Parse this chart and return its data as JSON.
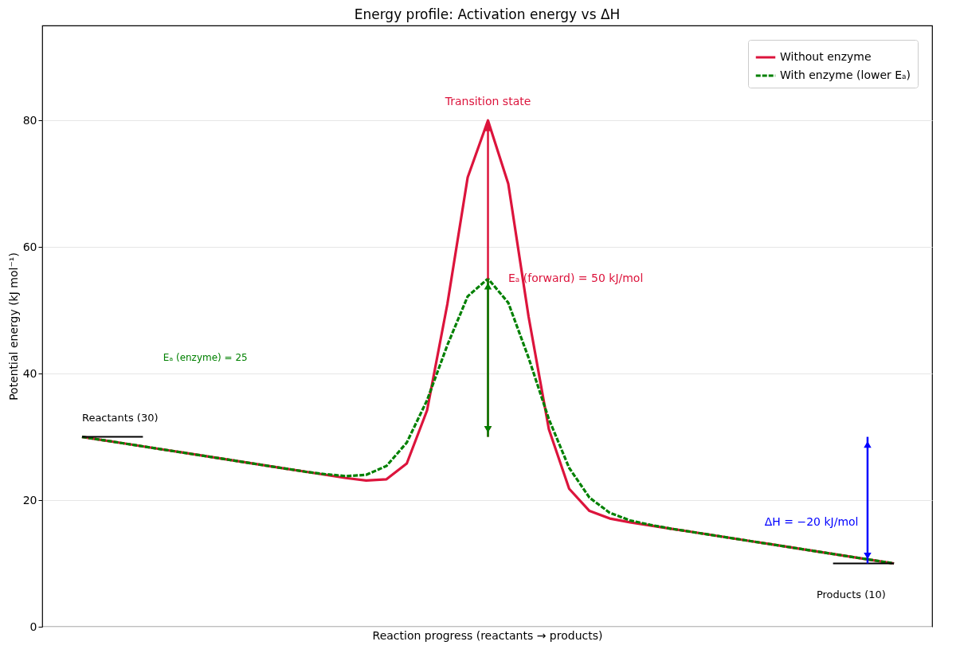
{
  "chart_data": {
    "type": "line",
    "title": "Energy profile: Activation energy vs ΔH",
    "xlabel": "Reaction progress  (reactants → products)",
    "ylabel": "Potential energy (kJ mol⁻¹)",
    "categories": [
      null,
      null,
      null,
      null,
      null,
      null,
      null,
      null,
      null,
      null,
      null,
      null,
      null,
      null,
      null,
      null,
      null,
      null,
      null,
      null,
      null,
      null,
      null,
      null,
      null,
      null,
      null,
      null,
      null,
      null,
      null,
      null,
      null,
      null,
      null,
      null,
      null,
      null,
      null,
      null,
      null
    ],
    "series": [
      {
        "name": "Without enzyme",
        "color": "#dc143c",
        "line_style": "solid",
        "values": [
          30,
          29.5,
          29,
          28.5,
          28,
          27.5,
          27,
          26.5,
          26,
          25.5,
          25,
          24.5,
          24,
          23.5,
          23.1,
          23.3,
          25.8,
          34.2,
          51,
          71,
          80,
          70,
          49,
          31.2,
          21.8,
          18.3,
          17.1,
          16.5,
          16,
          15.5,
          15,
          14.5,
          14,
          13.5,
          13,
          12.5,
          12,
          11.5,
          11,
          10.5,
          10
        ]
      },
      {
        "name": "With enzyme (lower Eₐ)",
        "color": "#008000",
        "line_style": "dashed",
        "values": [
          30,
          29.5,
          29,
          28.5,
          28,
          27.5,
          27,
          26.5,
          26,
          25.5,
          25,
          24.5,
          24.1,
          23.8,
          24,
          25.4,
          29.1,
          35.8,
          44.5,
          52.2,
          55,
          51.2,
          42.5,
          32.8,
          25.1,
          20.4,
          18,
          16.8,
          16.1,
          15.5,
          15,
          14.5,
          14,
          13.5,
          13,
          12.5,
          12,
          11.5,
          11,
          10.5,
          10
        ]
      },
      {
        "color": "#000000",
        "line_style": "solid",
        "values": [
          30,
          30,
          30,
          30,
          null,
          null,
          null,
          null,
          null,
          null,
          null,
          null,
          null,
          null,
          null,
          null,
          null,
          null,
          null,
          null,
          null,
          null,
          null,
          null,
          null,
          null,
          null,
          null,
          null,
          null,
          null,
          null,
          null,
          null,
          null,
          null,
          null,
          null,
          null,
          null,
          null
        ]
      },
      {
        "color": "#000000",
        "line_style": "solid",
        "values": [
          null,
          null,
          null,
          null,
          null,
          null,
          null,
          null,
          null,
          null,
          null,
          null,
          null,
          null,
          null,
          null,
          null,
          null,
          null,
          null,
          null,
          null,
          null,
          null,
          null,
          null,
          null,
          null,
          null,
          null,
          null,
          null,
          null,
          null,
          null,
          null,
          null,
          10,
          10,
          10,
          10
        ]
      }
    ],
    "ylim": [
      0,
      95
    ],
    "yticks": [
      0,
      20,
      40,
      60,
      80
    ],
    "grid": "y",
    "legend": "top right",
    "annotations": [
      "Transition state",
      "Eₐ (forward) = 50 kJ/mol",
      "Eₐ (enzyme) = 25",
      "Reactants (30)",
      "Products (10)",
      "ΔH = −20 kJ/mol"
    ]
  }
}
